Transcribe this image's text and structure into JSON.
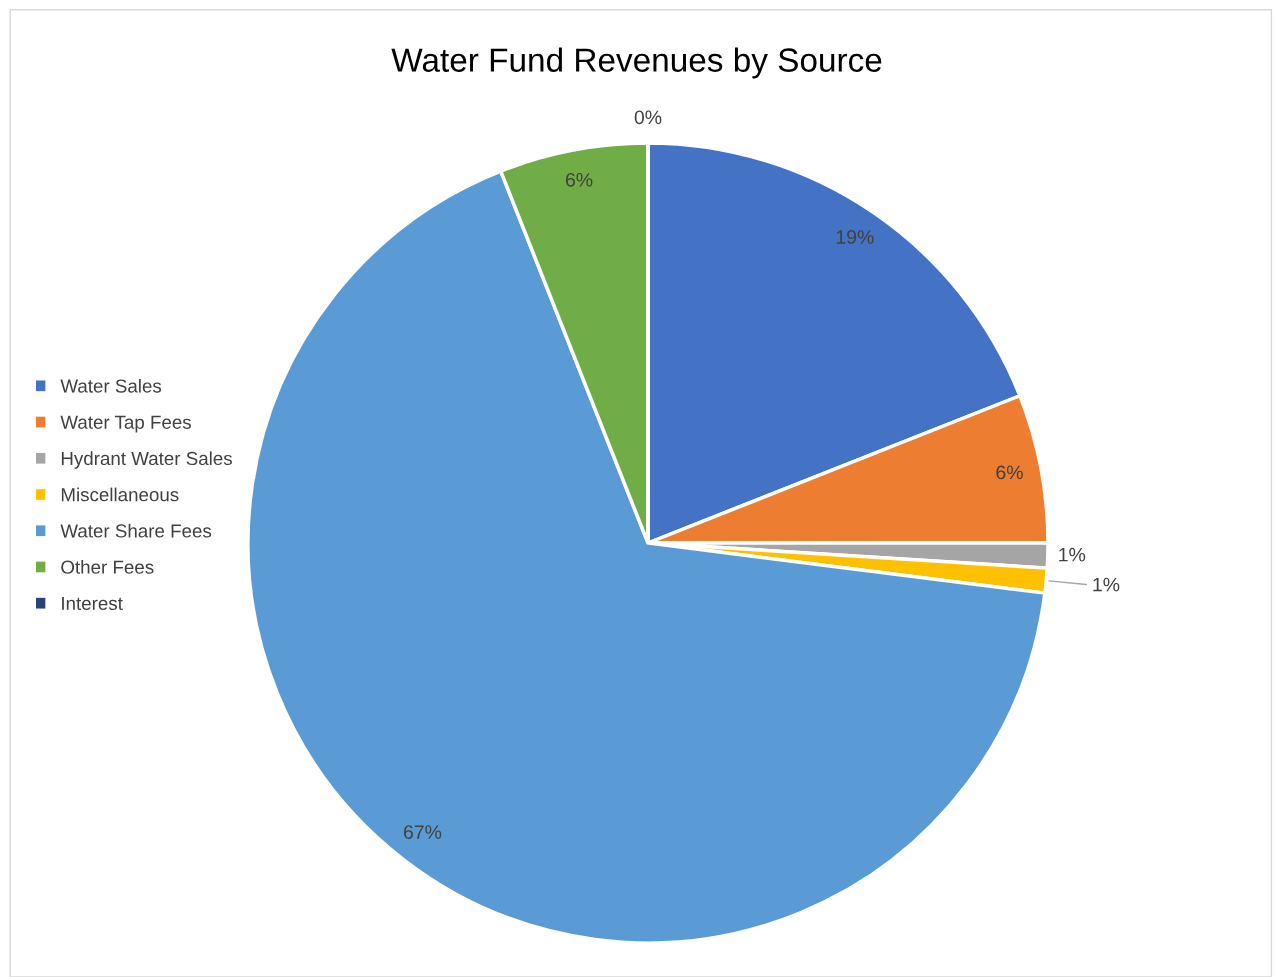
{
  "chart_data": {
    "type": "pie",
    "title": "Water Fund Revenues by Source",
    "categories": [
      "Water Sales",
      "Water Tap Fees",
      "Hydrant Water Sales",
      "Miscellaneous",
      "Water Share Fees",
      "Other Fees",
      "Interest"
    ],
    "values": [
      19,
      6,
      1,
      1,
      67,
      6,
      0
    ],
    "value_labels": [
      "19%",
      "6%",
      "1%",
      "1%",
      "67%",
      "6%",
      "0%"
    ],
    "colors": [
      "#4472c4",
      "#ed7d31",
      "#a5a5a5",
      "#ffc000",
      "#5b9bd5",
      "#70ad47",
      "#264478"
    ],
    "legend": "left"
  }
}
